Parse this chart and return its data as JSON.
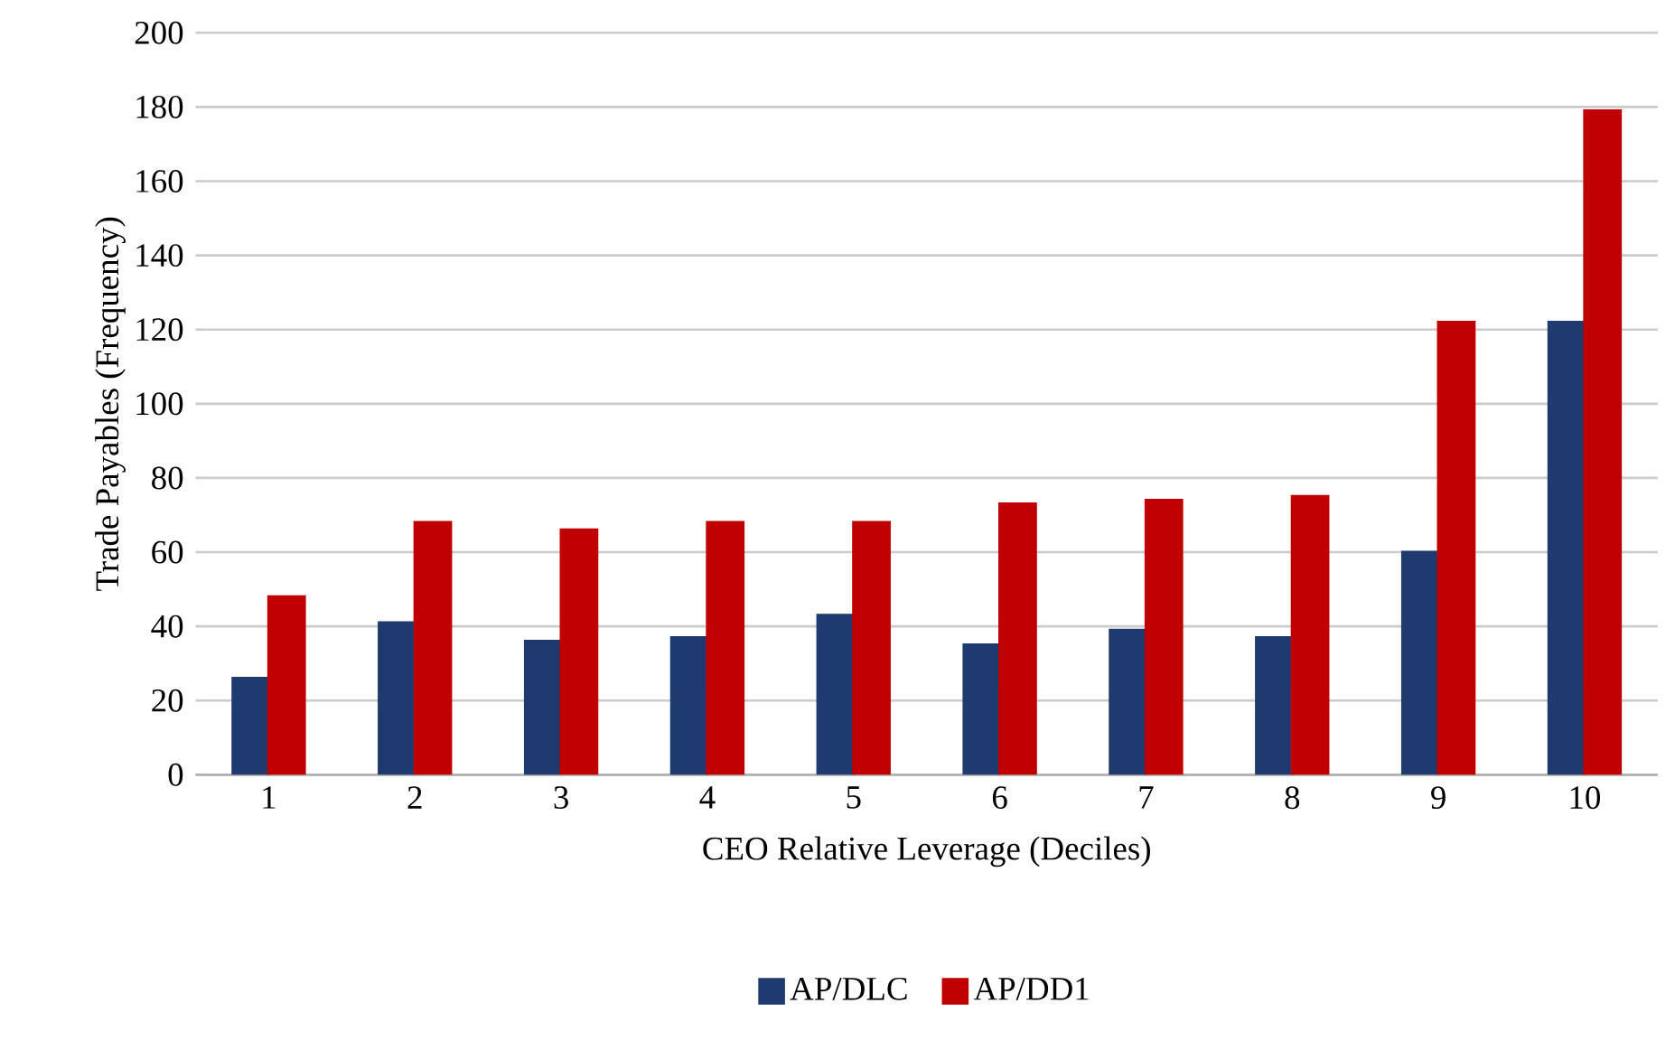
{
  "chart_data": {
    "type": "bar",
    "xlabel": "CEO Relative Leverage (Deciles)",
    "ylabel": "Trade Payables (Frequency)",
    "categories": [
      "1",
      "2",
      "3",
      "4",
      "5",
      "6",
      "7",
      "8",
      "9",
      "10"
    ],
    "series": [
      {
        "name": "AP/DLC",
        "color": "#1f3a6e",
        "values": [
          26,
          41,
          36,
          37,
          43,
          35,
          39,
          37,
          60,
          122
        ]
      },
      {
        "name": "AP/DD1",
        "color": "#c00000",
        "values": [
          48,
          68,
          66,
          68,
          68,
          73,
          74,
          75,
          122,
          179
        ]
      }
    ],
    "ylim": [
      0,
      200
    ],
    "yticks": [
      0,
      20,
      40,
      60,
      80,
      100,
      120,
      140,
      160,
      180,
      200
    ],
    "grid": "y",
    "legend": "bottom"
  }
}
